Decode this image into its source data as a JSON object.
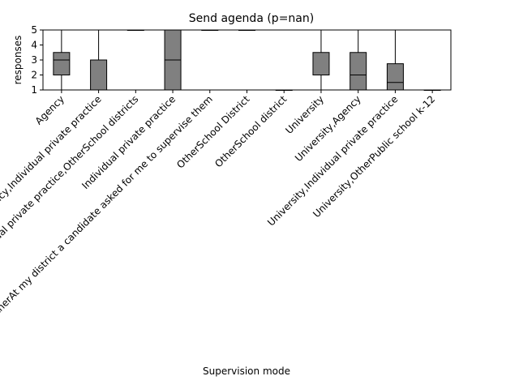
{
  "chart_data": {
    "type": "box",
    "title": "Send agenda (p=nan)",
    "xlabel": "Supervision mode",
    "ylabel": "responses",
    "ylim": [
      1,
      5
    ],
    "yticks": [
      1,
      2,
      3,
      4,
      5
    ],
    "grid": false,
    "box_color": "#808080",
    "line_color": "#000000",
    "categories": [
      "Agency",
      "Agency,Individual private practice",
      "Agency,Individual private practice,OtherSchool districts",
      "Individual private practice",
      "OtherAt my district a candidate asked for me to supervise them",
      "OtherSchool District",
      "OtherSchool district",
      "University",
      "University,Agency",
      "University,Individual private practice",
      "University,OtherPublic school k-12"
    ],
    "boxes": [
      {
        "whislo": 1,
        "q1": 2,
        "med": 3,
        "q3": 3.5,
        "whishi": 5
      },
      {
        "whislo": 1,
        "q1": 1,
        "med": 1,
        "q3": 3,
        "whishi": 5
      },
      {
        "whislo": 5,
        "q1": 5,
        "med": 5,
        "q3": 5,
        "whishi": 5
      },
      {
        "whislo": 1,
        "q1": 1,
        "med": 3,
        "q3": 5,
        "whishi": 5
      },
      {
        "whislo": 5,
        "q1": 5,
        "med": 5,
        "q3": 5,
        "whishi": 5
      },
      {
        "whislo": 5,
        "q1": 5,
        "med": 5,
        "q3": 5,
        "whishi": 5
      },
      {
        "whislo": 1,
        "q1": 1,
        "med": 1,
        "q3": 1,
        "whishi": 1
      },
      {
        "whislo": 1,
        "q1": 2,
        "med": 2,
        "q3": 3.5,
        "whishi": 5
      },
      {
        "whislo": 1,
        "q1": 1,
        "med": 2,
        "q3": 3.5,
        "whishi": 5
      },
      {
        "whislo": 1,
        "q1": 1,
        "med": 1.5,
        "q3": 2.75,
        "whishi": 5
      },
      {
        "whislo": 1,
        "q1": 1,
        "med": 1,
        "q3": 1,
        "whishi": 1
      }
    ]
  }
}
